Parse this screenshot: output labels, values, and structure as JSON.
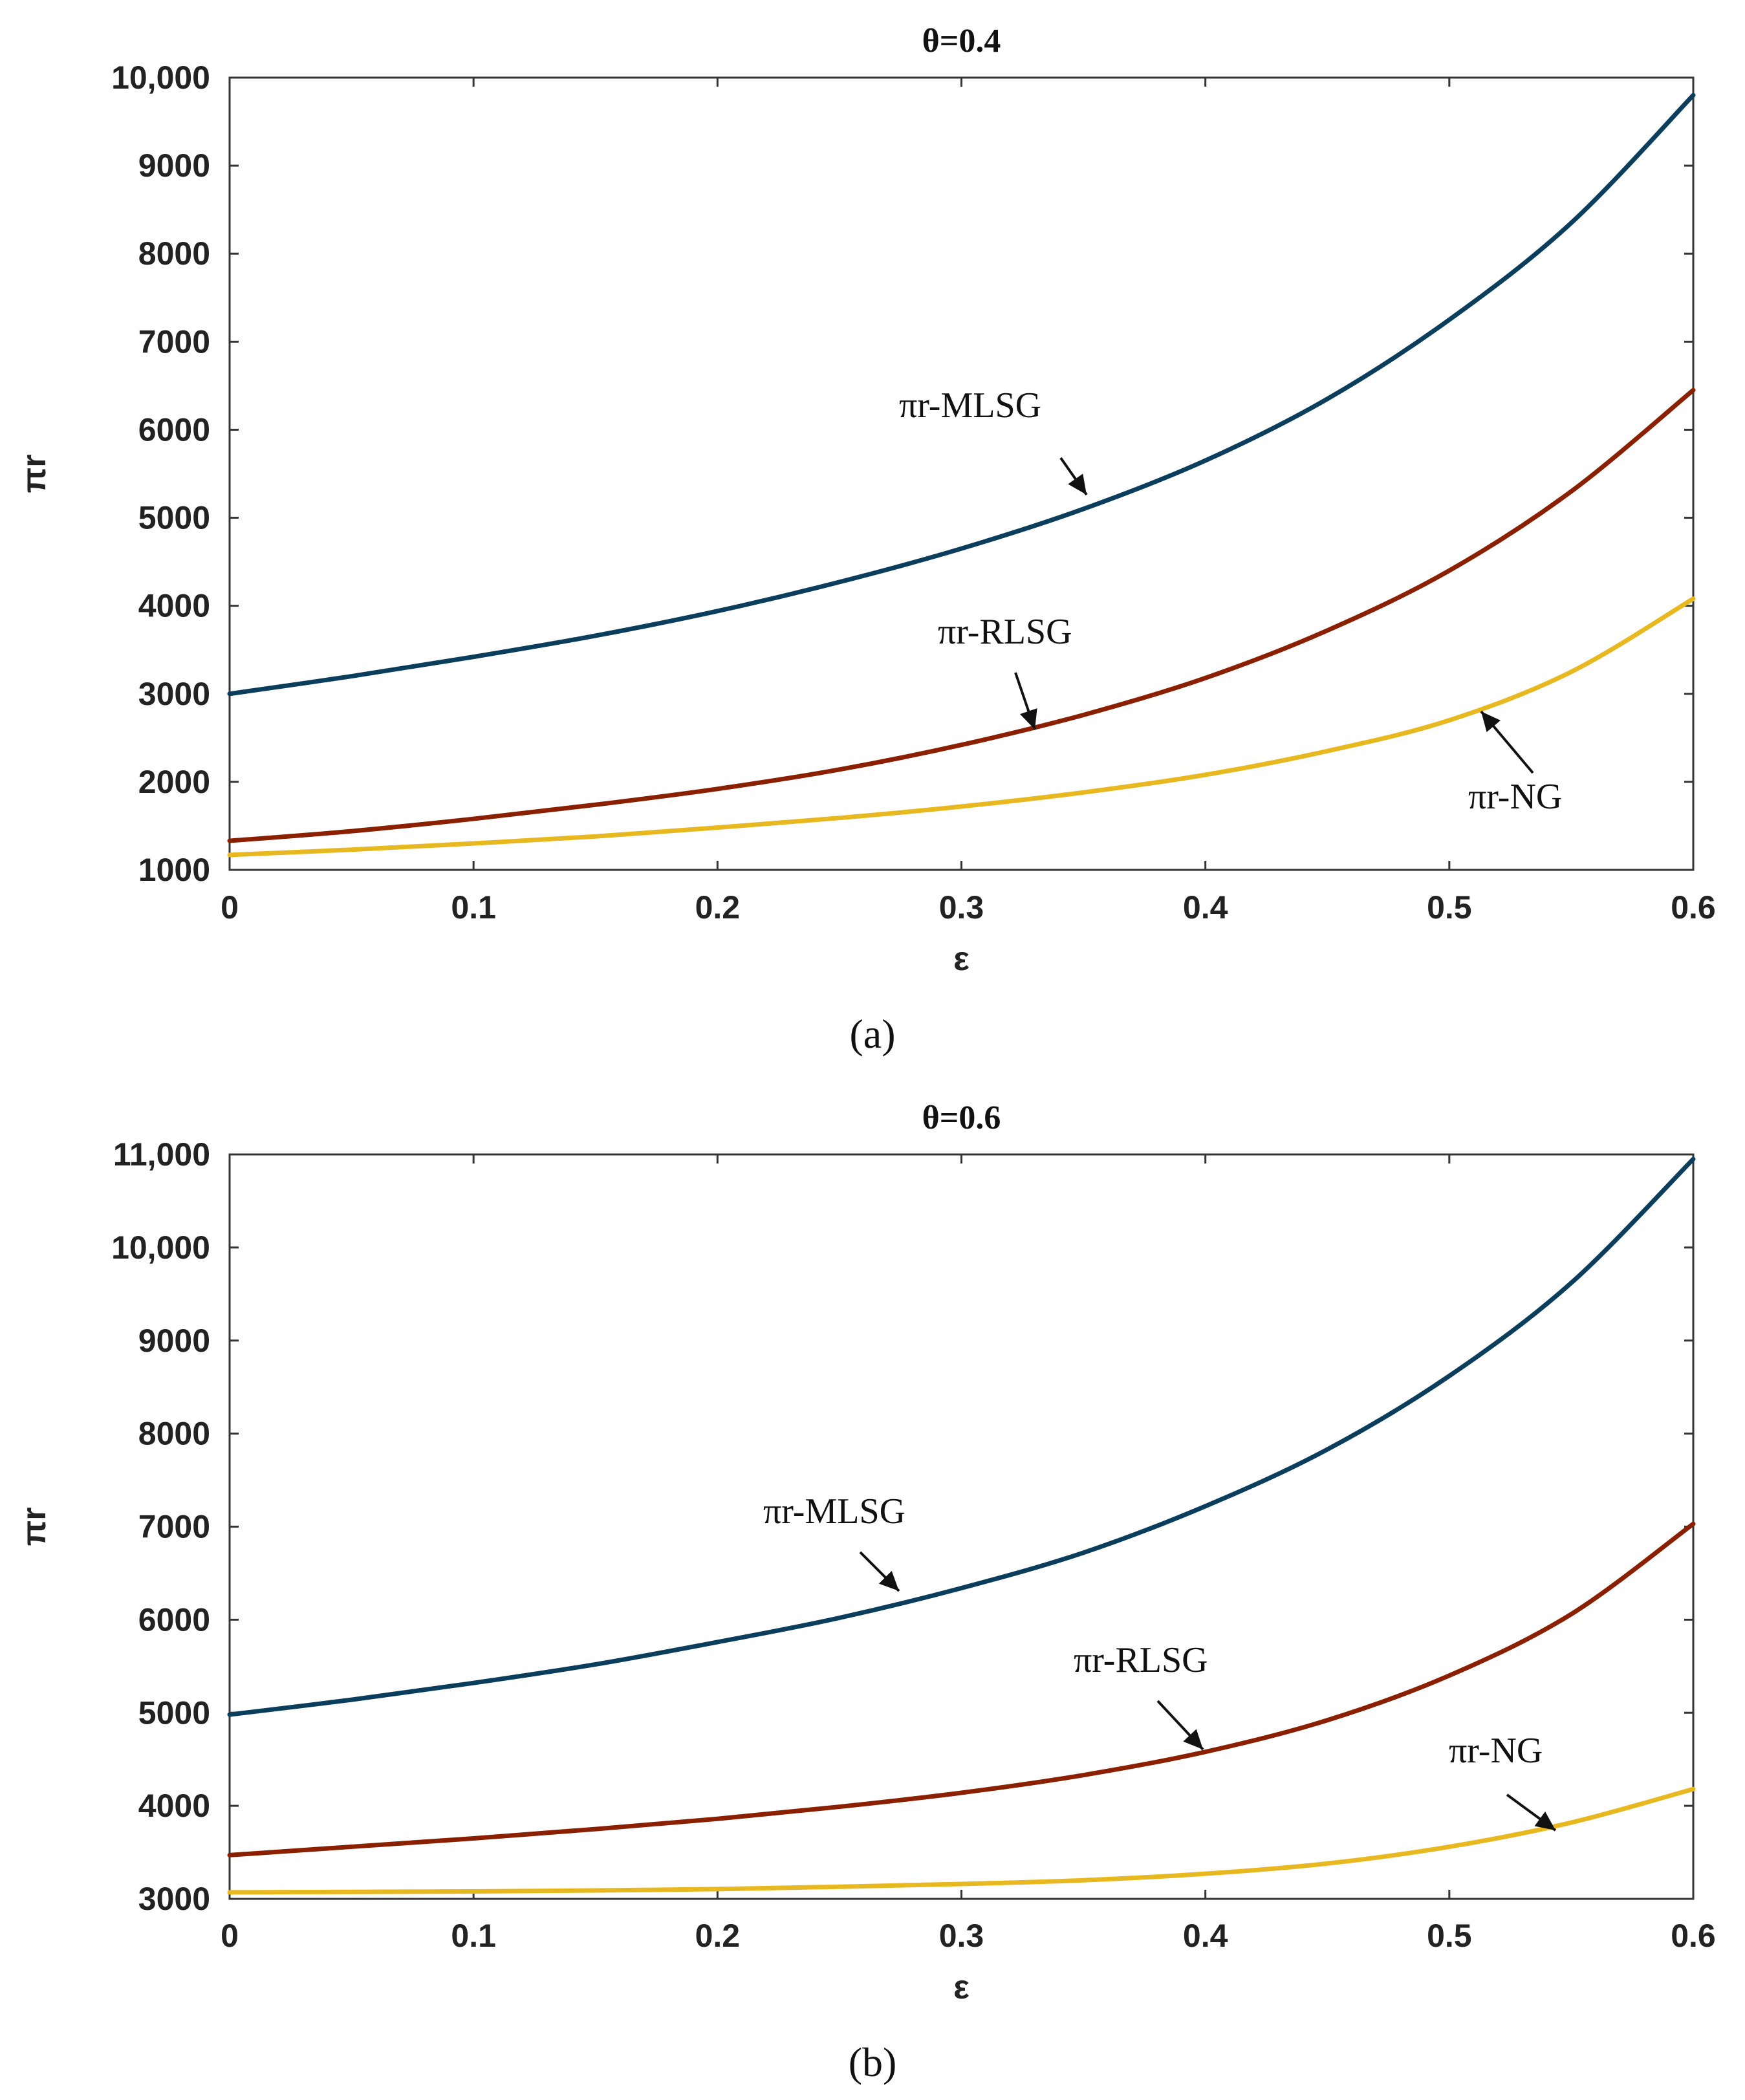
{
  "chart_data": [
    {
      "type": "line",
      "title": "θ=0.4",
      "caption": "(a)",
      "xlabel": "ε",
      "ylabel": "πr",
      "xlim": [
        0,
        0.6
      ],
      "ylim": [
        1000,
        10000
      ],
      "xticks": [
        "0",
        "0.1",
        "0.2",
        "0.3",
        "0.4",
        "0.5",
        "0.6"
      ],
      "yticks": [
        "1000",
        "2000",
        "3000",
        "4000",
        "5000",
        "6000",
        "7000",
        "8000",
        "9000",
        "10,000"
      ],
      "x": [
        0,
        0.05,
        0.1,
        0.15,
        0.2,
        0.25,
        0.3,
        0.35,
        0.4,
        0.45,
        0.5,
        0.55,
        0.6
      ],
      "series": [
        {
          "name": "πr-MLSG",
          "color": "#0b3d5c",
          "values": [
            3000,
            3200,
            3420,
            3660,
            3940,
            4270,
            4650,
            5100,
            5650,
            6350,
            7250,
            8350,
            9800
          ]
        },
        {
          "name": "πr-RLSG",
          "color": "#8b2000",
          "values": [
            1330,
            1440,
            1580,
            1740,
            1920,
            2140,
            2420,
            2760,
            3180,
            3720,
            4400,
            5300,
            6450
          ]
        },
        {
          "name": "πr-NG",
          "color": "#e8b820",
          "values": [
            1170,
            1230,
            1300,
            1380,
            1480,
            1590,
            1720,
            1880,
            2080,
            2350,
            2700,
            3250,
            4080
          ]
        }
      ],
      "annotations": [
        {
          "text": "πr-MLSG",
          "x": 0.35,
          "y": 5150
        },
        {
          "text": "πr-RLSG",
          "x": 0.33,
          "y": 2600
        },
        {
          "text": "πr-NG",
          "x": 0.515,
          "y": 2800
        }
      ]
    },
    {
      "type": "line",
      "title": "θ=0.6",
      "caption": "(b)",
      "xlabel": "ε",
      "ylabel": "πr",
      "xlim": [
        0,
        0.6
      ],
      "ylim": [
        3000,
        11000
      ],
      "xticks": [
        "0",
        "0.1",
        "0.2",
        "0.3",
        "0.4",
        "0.5",
        "0.6"
      ],
      "yticks": [
        "3000",
        "4000",
        "5000",
        "6000",
        "7000",
        "8000",
        "9000",
        "10,000",
        "11,000"
      ],
      "x": [
        0,
        0.05,
        0.1,
        0.15,
        0.2,
        0.25,
        0.3,
        0.35,
        0.4,
        0.45,
        0.5,
        0.55,
        0.6
      ],
      "series": [
        {
          "name": "πr-MLSG",
          "color": "#0b3d5c",
          "values": [
            4980,
            5140,
            5320,
            5520,
            5760,
            6020,
            6340,
            6720,
            7220,
            7830,
            8620,
            9620,
            10950
          ]
        },
        {
          "name": "πr-RLSG",
          "color": "#8b2000",
          "values": [
            3470,
            3560,
            3650,
            3750,
            3860,
            3990,
            4140,
            4330,
            4580,
            4920,
            5400,
            6060,
            7030
          ]
        },
        {
          "name": "πr-NG",
          "color": "#e8b820",
          "values": [
            3070,
            3075,
            3080,
            3090,
            3105,
            3130,
            3160,
            3200,
            3270,
            3380,
            3560,
            3820,
            4180
          ]
        }
      ],
      "annotations": [
        {
          "text": "πr-MLSG",
          "x": 0.275,
          "y": 6250
        },
        {
          "text": "πr-RLSG",
          "x": 0.4,
          "y": 4670
        },
        {
          "text": "πr-NG",
          "x": 0.545,
          "y": 3760
        }
      ]
    }
  ]
}
